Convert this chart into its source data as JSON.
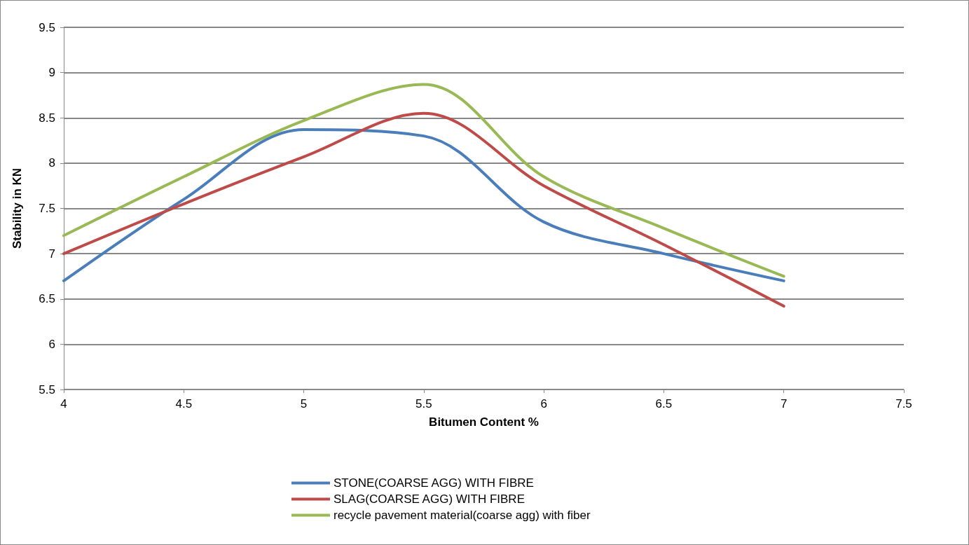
{
  "chart_data": {
    "type": "line",
    "xlabel": "Bitumen Content %",
    "ylabel": "Stability in KN",
    "x": [
      4,
      4.5,
      5,
      5.5,
      6,
      6.5,
      7
    ],
    "series": [
      {
        "name": "STONE(COARSE AGG) WITH FIBRE",
        "color": "#4a7ebb",
        "values": [
          6.7,
          7.6,
          8.37,
          8.3,
          7.35,
          7.0,
          6.7
        ]
      },
      {
        "name": "SLAG(COARSE AGG) WITH FIBRE",
        "color": "#be4b48",
        "values": [
          7.0,
          7.55,
          8.07,
          8.55,
          7.75,
          7.1,
          6.42
        ]
      },
      {
        "name": "recycle pavement material(coarse agg) with fiber",
        "color": "#98b954",
        "values": [
          7.2,
          7.85,
          8.47,
          8.87,
          7.85,
          7.28,
          6.75
        ]
      }
    ],
    "xlim": [
      4,
      7.5
    ],
    "xticks": [
      4,
      4.5,
      5,
      5.5,
      6,
      6.5,
      7,
      7.5
    ],
    "ylim": [
      5.5,
      9.5
    ],
    "yticks": [
      5.5,
      6,
      6.5,
      7,
      7.5,
      8,
      8.5,
      9,
      9.5
    ],
    "grid": "y",
    "legend": "bottom",
    "marker": "none",
    "line_style": "solid"
  }
}
